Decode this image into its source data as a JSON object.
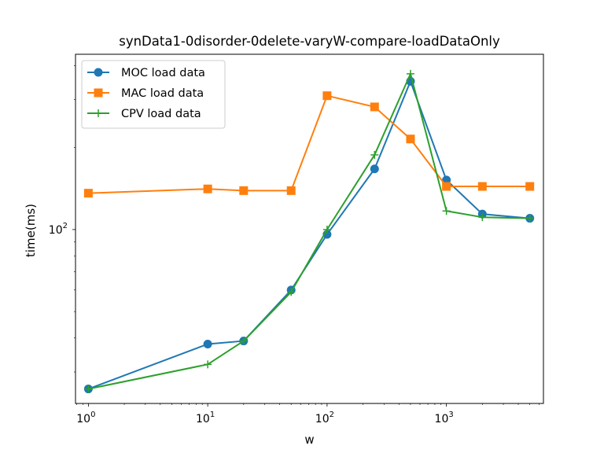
{
  "chart_data": {
    "type": "line",
    "title": "synData1-0disorder-0delete-varyW-compare-loadDataOnly",
    "xlabel": "w",
    "ylabel": "time(ms)",
    "xscale": "log",
    "yscale": "log",
    "xlim": [
      0.78,
      6500
    ],
    "ylim": [
      23,
      440
    ],
    "x_ticks": [
      {
        "value": 1,
        "base": "10",
        "exp": "0"
      },
      {
        "value": 10,
        "base": "10",
        "exp": "1"
      },
      {
        "value": 100,
        "base": "10",
        "exp": "2"
      },
      {
        "value": 1000,
        "base": "10",
        "exp": "3"
      }
    ],
    "y_ticks": [
      {
        "value": 100,
        "base": "10",
        "exp": "2"
      }
    ],
    "x": [
      1,
      10,
      20,
      50,
      100,
      250,
      500,
      1000,
      2000,
      5000
    ],
    "series": [
      {
        "name": "MOC load data",
        "color": "#1f77b4",
        "marker": "circle",
        "values": [
          26,
          38,
          39,
          60,
          96,
          167,
          350,
          152,
          114,
          110
        ]
      },
      {
        "name": "MAC load data",
        "color": "#ff7f0e",
        "marker": "square",
        "values": [
          136,
          141,
          139,
          139,
          310,
          282,
          215,
          144,
          144,
          144
        ]
      },
      {
        "name": "CPV load data",
        "color": "#2ca02c",
        "marker": "plus",
        "values": [
          26,
          32,
          39,
          59,
          100,
          188,
          373,
          117,
          111,
          110
        ]
      }
    ],
    "grid": false,
    "legend_position": "upper-left"
  }
}
